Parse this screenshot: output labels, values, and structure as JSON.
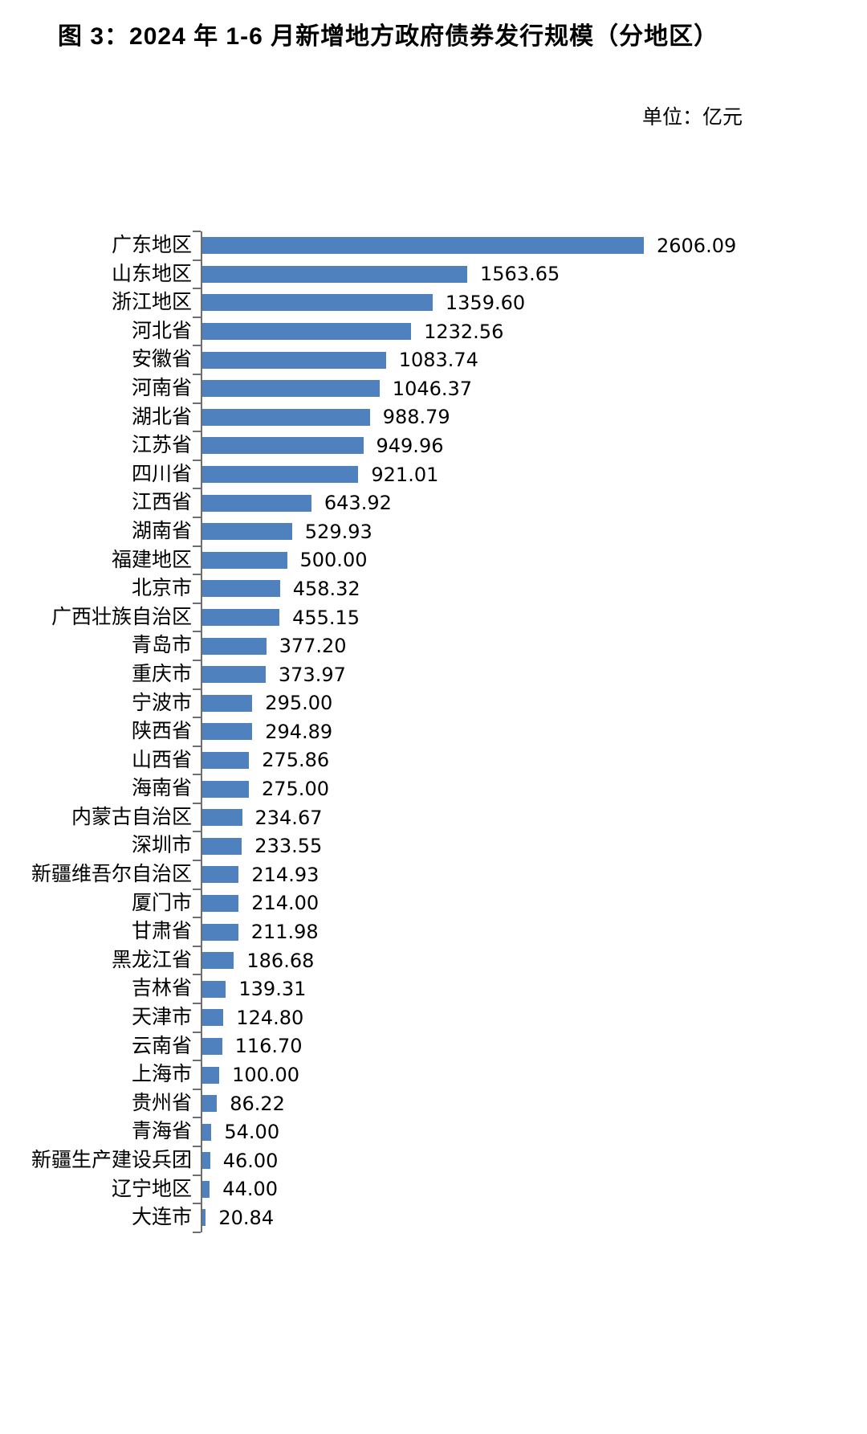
{
  "title": "图 3：2024 年 1-6 月新增地方政府债券发行规模（分地区）",
  "unit_label": "单位：亿元",
  "chart_data": {
    "type": "bar",
    "orientation": "horizontal",
    "title": "图 3：2024 年 1-6 月新增地方政府债券发行规模（分地区）",
    "unit": "亿元",
    "xlabel": "",
    "ylabel": "",
    "xlim": [
      0,
      2606.09
    ],
    "grid": false,
    "legend": false,
    "bar_color": "#4e81bd",
    "axis_color": "#6e6e6e",
    "categories": [
      "广东地区",
      "山东地区",
      "浙江地区",
      "河北省",
      "安徽省",
      "河南省",
      "湖北省",
      "江苏省",
      "四川省",
      "江西省",
      "湖南省",
      "福建地区",
      "北京市",
      "广西壮族自治区",
      "青岛市",
      "重庆市",
      "宁波市",
      "陕西省",
      "山西省",
      "海南省",
      "内蒙古自治区",
      "深圳市",
      "新疆维吾尔自治区",
      "厦门市",
      "甘肃省",
      "黑龙江省",
      "吉林省",
      "天津市",
      "云南省",
      "上海市",
      "贵州省",
      "青海省",
      "新疆生产建设兵团",
      "辽宁地区",
      "大连市"
    ],
    "values": [
      2606.09,
      1563.65,
      1359.6,
      1232.56,
      1083.74,
      1046.37,
      988.79,
      949.96,
      921.01,
      643.92,
      529.93,
      500.0,
      458.32,
      455.15,
      377.2,
      373.97,
      295.0,
      294.89,
      275.86,
      275.0,
      234.67,
      233.55,
      214.93,
      214.0,
      211.98,
      186.68,
      139.31,
      124.8,
      116.7,
      100.0,
      86.22,
      54.0,
      46.0,
      44.0,
      20.84
    ],
    "value_labels": [
      "2606.09",
      "1563.65",
      "1359.60",
      "1232.56",
      "1083.74",
      "1046.37",
      "988.79",
      "949.96",
      "921.01",
      "643.92",
      "529.93",
      "500.00",
      "458.32",
      "455.15",
      "377.20",
      "373.97",
      "295.00",
      "294.89",
      "275.86",
      "275.00",
      "234.67",
      "233.55",
      "214.93",
      "214.00",
      "211.98",
      "186.68",
      "139.31",
      "124.80",
      "116.70",
      "100.00",
      "86.22",
      "54.00",
      "46.00",
      "44.00",
      "20.84"
    ]
  }
}
